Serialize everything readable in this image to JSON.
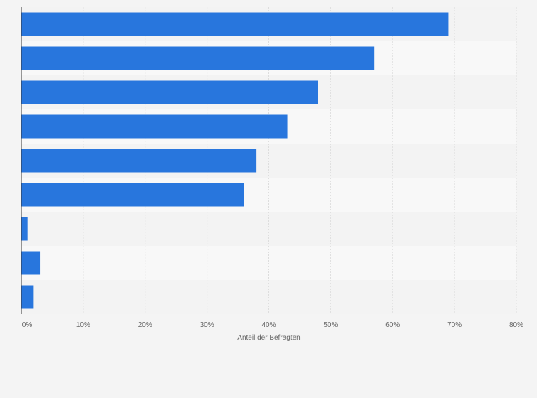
{
  "chart_data": {
    "type": "bar",
    "orientation": "horizontal",
    "categories": [
      "",
      "",
      "",
      "",
      "",
      "",
      "",
      "",
      ""
    ],
    "values": [
      69,
      57,
      48,
      43,
      38,
      36,
      1,
      3,
      2
    ],
    "unit": "%",
    "xlabel": "Anteil der Befragten",
    "xlim": [
      0,
      80
    ],
    "xticks": [
      0,
      10,
      20,
      30,
      40,
      50,
      60,
      70,
      80
    ],
    "xtick_labels": [
      "0%",
      "10%",
      "20%",
      "30%",
      "40%",
      "50%",
      "60%",
      "70%",
      "80%"
    ],
    "grid": "vertical",
    "colors": {
      "bar": "#2876dd",
      "band_dark": "#f3f3f3",
      "band_light": "#f8f8f8",
      "grid": "#dddddd",
      "axis": "#333333",
      "text": "#666666",
      "background": "#f4f4f4"
    }
  }
}
